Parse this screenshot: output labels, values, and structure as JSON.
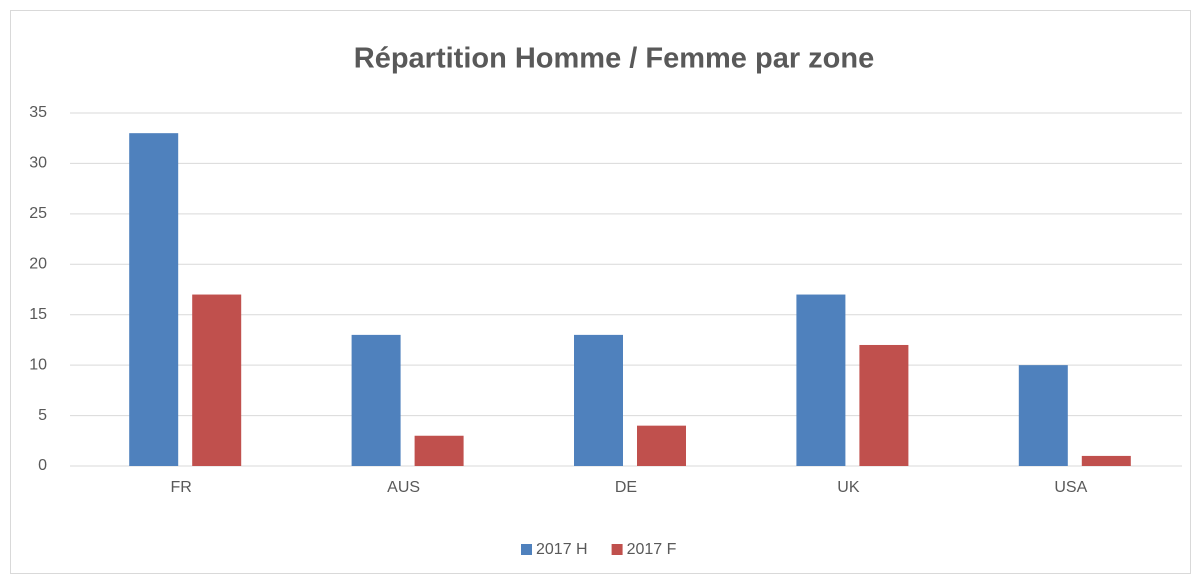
{
  "chart_data": {
    "type": "bar",
    "title": "Répartition Homme / Femme par zone",
    "categories": [
      "FR",
      "AUS",
      "DE",
      "UK",
      "USA"
    ],
    "series": [
      {
        "name": "2017 H",
        "color": "#4f81bd",
        "values": [
          33,
          13,
          13,
          17,
          10
        ]
      },
      {
        "name": "2017 F",
        "color": "#c0504d",
        "values": [
          17,
          3,
          4,
          12,
          1
        ]
      }
    ],
    "ylim": [
      0,
      35
    ],
    "yticks": [
      0,
      5,
      10,
      15,
      20,
      25,
      30,
      35
    ],
    "grid": true,
    "legend": "bottom"
  }
}
